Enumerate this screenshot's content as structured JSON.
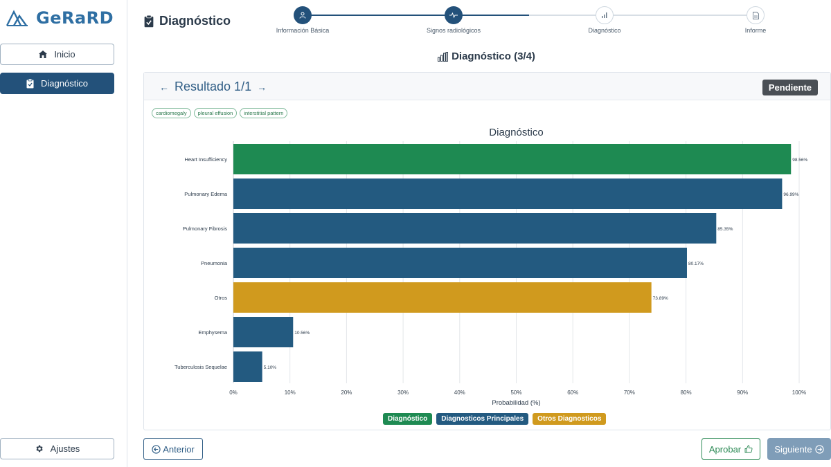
{
  "app": {
    "brand": "GeRaRD"
  },
  "sidebar": {
    "items": [
      {
        "label": "Inicio",
        "icon": "home-icon"
      },
      {
        "label": "Diagnóstico",
        "icon": "clipboard-icon",
        "active": true
      }
    ],
    "settings_label": "Ajustes"
  },
  "header": {
    "title": "Diagnóstico"
  },
  "stepper": {
    "steps": [
      {
        "label": "Información Básica",
        "icon": "user-icon",
        "status": "done"
      },
      {
        "label": "Signos radiológicos",
        "icon": "pulse-icon",
        "status": "done"
      },
      {
        "label": "Diagnóstico",
        "icon": "bar-chart-icon",
        "status": "todo"
      },
      {
        "label": "Informe",
        "icon": "document-icon",
        "status": "todo"
      }
    ]
  },
  "section": {
    "title": "Diagnóstico (3/4)"
  },
  "result": {
    "label": "Resultado 1/1",
    "status": "Pendiente",
    "tags": [
      "cardiomegaly",
      "pleural effusion",
      "interstitial pattern"
    ]
  },
  "chart_data": {
    "type": "bar",
    "orientation": "horizontal",
    "title": "Diagnóstico",
    "xlabel": "Probabilidad (%)",
    "ylabel": "",
    "xlim": [
      0,
      100
    ],
    "xticks": [
      "0%",
      "10%",
      "20%",
      "30%",
      "40%",
      "50%",
      "60%",
      "70%",
      "80%",
      "90%",
      "100%"
    ],
    "grid": "vertical",
    "legend_placement": "bottom",
    "legend": [
      {
        "name": "Diagnóstico",
        "color": "#1e8a52"
      },
      {
        "name": "Diagnosticos Principales",
        "color": "#235a80"
      },
      {
        "name": "Otros Diagnosticos",
        "color": "#d09a1e"
      }
    ],
    "categories": [
      "Heart Insufficiency",
      "Pulmonary Edema",
      "Pulmonary Fibrosis",
      "Pneumonia",
      "Otros",
      "Emphysema",
      "Tuberculosis Sequelae"
    ],
    "values": [
      98.56,
      96.99,
      85.35,
      80.17,
      73.89,
      10.56,
      5.1
    ],
    "value_labels": [
      "98.56%",
      "96.99%",
      "85.35%",
      "80.17%",
      "73.89%",
      "10.56%",
      "5.10%"
    ],
    "groups": [
      "Diagnóstico",
      "Diagnosticos Principales",
      "Diagnosticos Principales",
      "Diagnosticos Principales",
      "Otros Diagnosticos",
      "Diagnosticos Principales",
      "Diagnosticos Principales"
    ]
  },
  "footer": {
    "prev_label": "Anterior",
    "approve_label": "Aprobar",
    "next_label": "Siguiente"
  },
  "colors": {
    "primary": "#23517a",
    "success": "#1e8a52",
    "warning": "#d09a1e",
    "badge": "#4a4f55",
    "disabled": "#7f9db8"
  }
}
